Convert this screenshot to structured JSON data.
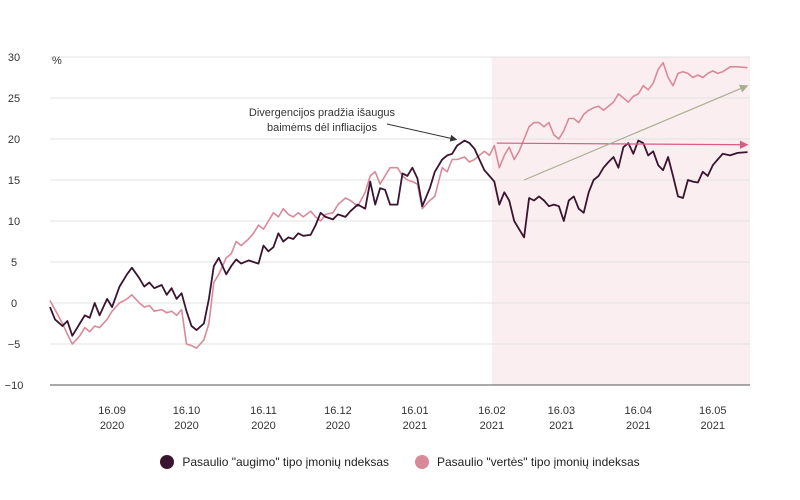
{
  "chart_data": {
    "type": "line",
    "title": "",
    "xlabel": "",
    "ylabel": "%",
    "ylim": [
      -10,
      30
    ],
    "yticks": [
      "30",
      "25",
      "20",
      "15",
      "10",
      "5",
      "0",
      "−5",
      "−10"
    ],
    "xticks": [
      {
        "day": "16.09",
        "year": "2020"
      },
      {
        "day": "16.10",
        "year": "2020"
      },
      {
        "day": "16.11",
        "year": "2020"
      },
      {
        "day": "16.12",
        "year": "2020"
      },
      {
        "day": "16.01",
        "year": "2021"
      },
      {
        "day": "16.02",
        "year": "2021"
      },
      {
        "day": "16.03",
        "year": "2021"
      },
      {
        "day": "16.04",
        "year": "2021"
      },
      {
        "day": "16.05",
        "year": "2021"
      }
    ],
    "x_range": [
      "2020-08-22",
      "2021-05-31"
    ],
    "shaded_region": {
      "from": "2021-02-16",
      "to": "2021-05-31",
      "color": "#fbeef0"
    },
    "gridlines": true,
    "legend_placement": "bottom",
    "annotation": {
      "lines": [
        "Divergencijos pradžia išaugus",
        "baimėms dėl infliacijos"
      ],
      "points_to": {
        "date": "2021-02-05",
        "y": 19.8
      }
    },
    "trend_arrows": [
      {
        "name": "growth-trend",
        "color": "#d95b86",
        "from": {
          "date": "2021-02-18",
          "y": 19.5
        },
        "to": {
          "date": "2021-05-30",
          "y": 19.3
        }
      },
      {
        "name": "value-trend",
        "color": "#a8ae92",
        "from": {
          "date": "2021-03-01",
          "y": 15.0
        },
        "to": {
          "date": "2021-05-30",
          "y": 26.5
        }
      }
    ],
    "series": [
      {
        "name": "Pasaulio \"augimo\" tipo įmonių ndeksas",
        "color": "#3a1530",
        "points": [
          [
            "2020-08-22",
            -0.5
          ],
          [
            "2020-08-24",
            -2.0
          ],
          [
            "2020-08-27",
            -2.8
          ],
          [
            "2020-08-29",
            -2.2
          ],
          [
            "2020-08-31",
            -4.0
          ],
          [
            "2020-09-03",
            -2.5
          ],
          [
            "2020-09-05",
            -1.5
          ],
          [
            "2020-09-07",
            -1.8
          ],
          [
            "2020-09-09",
            0.0
          ],
          [
            "2020-09-11",
            -1.5
          ],
          [
            "2020-09-14",
            0.5
          ],
          [
            "2020-09-16",
            -0.5
          ],
          [
            "2020-09-19",
            2.0
          ],
          [
            "2020-09-22",
            3.5
          ],
          [
            "2020-09-24",
            4.3
          ],
          [
            "2020-09-27",
            3.0
          ],
          [
            "2020-09-29",
            2.0
          ],
          [
            "2020-10-01",
            2.5
          ],
          [
            "2020-10-03",
            1.8
          ],
          [
            "2020-10-06",
            2.2
          ],
          [
            "2020-10-08",
            1.0
          ],
          [
            "2020-10-10",
            1.8
          ],
          [
            "2020-10-12",
            0.5
          ],
          [
            "2020-10-14",
            1.2
          ],
          [
            "2020-10-16",
            -1.0
          ],
          [
            "2020-10-18",
            -2.8
          ],
          [
            "2020-10-20",
            -3.3
          ],
          [
            "2020-10-23",
            -2.5
          ],
          [
            "2020-10-25",
            0.5
          ],
          [
            "2020-10-27",
            4.5
          ],
          [
            "2020-10-29",
            5.5
          ],
          [
            "2020-11-01",
            3.5
          ],
          [
            "2020-11-03",
            4.5
          ],
          [
            "2020-11-05",
            5.3
          ],
          [
            "2020-11-07",
            4.8
          ],
          [
            "2020-11-10",
            5.2
          ],
          [
            "2020-11-12",
            5.0
          ],
          [
            "2020-11-14",
            4.8
          ],
          [
            "2020-11-16",
            7.0
          ],
          [
            "2020-11-18",
            6.3
          ],
          [
            "2020-11-20",
            6.8
          ],
          [
            "2020-11-22",
            8.5
          ],
          [
            "2020-11-24",
            7.5
          ],
          [
            "2020-11-26",
            8.0
          ],
          [
            "2020-11-28",
            7.8
          ],
          [
            "2020-11-30",
            8.5
          ],
          [
            "2020-12-02",
            8.2
          ],
          [
            "2020-12-05",
            8.3
          ],
          [
            "2020-12-07",
            9.5
          ],
          [
            "2020-12-09",
            11.0
          ],
          [
            "2020-12-11",
            10.5
          ],
          [
            "2020-12-14",
            10.2
          ],
          [
            "2020-12-16",
            10.8
          ],
          [
            "2020-12-19",
            10.5
          ],
          [
            "2020-12-21",
            11.2
          ],
          [
            "2020-12-24",
            12.0
          ],
          [
            "2020-12-27",
            11.5
          ],
          [
            "2020-12-29",
            14.8
          ],
          [
            "2020-12-31",
            12.0
          ],
          [
            "2021-01-02",
            14.0
          ],
          [
            "2021-01-04",
            13.8
          ],
          [
            "2021-01-06",
            12.0
          ],
          [
            "2021-01-09",
            12.0
          ],
          [
            "2021-01-11",
            15.8
          ],
          [
            "2021-01-13",
            15.5
          ],
          [
            "2021-01-15",
            16.5
          ],
          [
            "2021-01-17",
            15.2
          ],
          [
            "2021-01-19",
            11.8
          ],
          [
            "2021-01-22",
            14.0
          ],
          [
            "2021-01-24",
            16.0
          ],
          [
            "2021-01-27",
            17.5
          ],
          [
            "2021-01-29",
            18.0
          ],
          [
            "2021-01-31",
            18.2
          ],
          [
            "2021-02-02",
            19.2
          ],
          [
            "2021-02-05",
            19.8
          ],
          [
            "2021-02-07",
            19.5
          ],
          [
            "2021-02-09",
            18.8
          ],
          [
            "2021-02-11",
            17.5
          ],
          [
            "2021-02-13",
            16.2
          ],
          [
            "2021-02-15",
            15.5
          ],
          [
            "2021-02-17",
            14.8
          ],
          [
            "2021-02-19",
            12.0
          ],
          [
            "2021-02-21",
            13.5
          ],
          [
            "2021-02-23",
            12.5
          ],
          [
            "2021-02-25",
            10.0
          ],
          [
            "2021-02-27",
            9.0
          ],
          [
            "2021-03-01",
            8.0
          ],
          [
            "2021-03-03",
            12.8
          ],
          [
            "2021-03-05",
            12.5
          ],
          [
            "2021-03-07",
            13.0
          ],
          [
            "2021-03-09",
            12.5
          ],
          [
            "2021-03-11",
            11.8
          ],
          [
            "2021-03-13",
            12.0
          ],
          [
            "2021-03-15",
            11.8
          ],
          [
            "2021-03-17",
            10.0
          ],
          [
            "2021-03-19",
            12.5
          ],
          [
            "2021-03-21",
            13.0
          ],
          [
            "2021-03-23",
            11.5
          ],
          [
            "2021-03-25",
            11.0
          ],
          [
            "2021-03-27",
            13.5
          ],
          [
            "2021-03-29",
            15.0
          ],
          [
            "2021-03-31",
            15.5
          ],
          [
            "2021-04-02",
            16.5
          ],
          [
            "2021-04-04",
            17.2
          ],
          [
            "2021-04-06",
            17.8
          ],
          [
            "2021-04-08",
            16.5
          ],
          [
            "2021-04-10",
            19.0
          ],
          [
            "2021-04-12",
            19.5
          ],
          [
            "2021-04-14",
            18.2
          ],
          [
            "2021-04-16",
            19.8
          ],
          [
            "2021-04-18",
            19.5
          ],
          [
            "2021-04-20",
            18.0
          ],
          [
            "2021-04-22",
            18.5
          ],
          [
            "2021-04-24",
            16.8
          ],
          [
            "2021-04-26",
            16.2
          ],
          [
            "2021-04-28",
            17.8
          ],
          [
            "2021-04-30",
            15.5
          ],
          [
            "2021-05-02",
            13.0
          ],
          [
            "2021-05-04",
            12.8
          ],
          [
            "2021-05-06",
            15.0
          ],
          [
            "2021-05-08",
            14.8
          ],
          [
            "2021-05-10",
            14.7
          ],
          [
            "2021-05-12",
            16.0
          ],
          [
            "2021-05-14",
            15.5
          ],
          [
            "2021-05-16",
            16.8
          ],
          [
            "2021-05-18",
            17.5
          ],
          [
            "2021-05-20",
            18.2
          ],
          [
            "2021-05-23",
            18.0
          ],
          [
            "2021-05-26",
            18.3
          ],
          [
            "2021-05-30",
            18.4
          ]
        ]
      },
      {
        "name": "Pasaulio \"vertės\" tipo įmonių indeksas",
        "color": "#d98a99",
        "points": [
          [
            "2020-08-22",
            0.3
          ],
          [
            "2020-08-24",
            -0.8
          ],
          [
            "2020-08-27",
            -2.5
          ],
          [
            "2020-08-29",
            -3.8
          ],
          [
            "2020-08-31",
            -5.0
          ],
          [
            "2020-09-03",
            -4.0
          ],
          [
            "2020-09-05",
            -3.0
          ],
          [
            "2020-09-07",
            -3.5
          ],
          [
            "2020-09-09",
            -2.8
          ],
          [
            "2020-09-11",
            -3.0
          ],
          [
            "2020-09-14",
            -2.0
          ],
          [
            "2020-09-16",
            -1.0
          ],
          [
            "2020-09-19",
            0.0
          ],
          [
            "2020-09-22",
            0.5
          ],
          [
            "2020-09-24",
            1.0
          ],
          [
            "2020-09-27",
            0.0
          ],
          [
            "2020-09-29",
            -0.5
          ],
          [
            "2020-10-01",
            -0.3
          ],
          [
            "2020-10-03",
            -1.0
          ],
          [
            "2020-10-06",
            -0.8
          ],
          [
            "2020-10-08",
            -1.2
          ],
          [
            "2020-10-10",
            -1.0
          ],
          [
            "2020-10-12",
            -1.5
          ],
          [
            "2020-10-14",
            -0.8
          ],
          [
            "2020-10-16",
            -5.0
          ],
          [
            "2020-10-18",
            -5.2
          ],
          [
            "2020-10-20",
            -5.5
          ],
          [
            "2020-10-23",
            -4.5
          ],
          [
            "2020-10-25",
            -2.5
          ],
          [
            "2020-10-27",
            2.5
          ],
          [
            "2020-10-29",
            3.5
          ],
          [
            "2020-11-01",
            5.5
          ],
          [
            "2020-11-03",
            6.0
          ],
          [
            "2020-11-05",
            7.5
          ],
          [
            "2020-11-07",
            7.0
          ],
          [
            "2020-11-10",
            7.8
          ],
          [
            "2020-11-12",
            8.5
          ],
          [
            "2020-11-14",
            9.5
          ],
          [
            "2020-11-16",
            9.0
          ],
          [
            "2020-11-18",
            10.0
          ],
          [
            "2020-11-20",
            11.0
          ],
          [
            "2020-11-22",
            10.5
          ],
          [
            "2020-11-24",
            11.5
          ],
          [
            "2020-11-26",
            10.8
          ],
          [
            "2020-11-28",
            10.5
          ],
          [
            "2020-11-30",
            11.0
          ],
          [
            "2020-12-02",
            10.5
          ],
          [
            "2020-12-05",
            11.2
          ],
          [
            "2020-12-07",
            10.5
          ],
          [
            "2020-12-09",
            10.0
          ],
          [
            "2020-12-11",
            10.8
          ],
          [
            "2020-12-14",
            11.0
          ],
          [
            "2020-12-16",
            12.0
          ],
          [
            "2020-12-19",
            12.8
          ],
          [
            "2020-12-21",
            12.5
          ],
          [
            "2020-12-24",
            11.8
          ],
          [
            "2020-12-27",
            13.5
          ],
          [
            "2020-12-29",
            15.5
          ],
          [
            "2020-12-31",
            16.0
          ],
          [
            "2021-01-02",
            14.5
          ],
          [
            "2021-01-04",
            15.5
          ],
          [
            "2021-01-06",
            16.5
          ],
          [
            "2021-01-09",
            16.5
          ],
          [
            "2021-01-11",
            15.5
          ],
          [
            "2021-01-13",
            15.0
          ],
          [
            "2021-01-15",
            14.8
          ],
          [
            "2021-01-17",
            14.5
          ],
          [
            "2021-01-19",
            11.5
          ],
          [
            "2021-01-22",
            12.5
          ],
          [
            "2021-01-24",
            13.0
          ],
          [
            "2021-01-27",
            16.5
          ],
          [
            "2021-01-29",
            16.0
          ],
          [
            "2021-01-31",
            17.5
          ],
          [
            "2021-02-02",
            17.5
          ],
          [
            "2021-02-05",
            17.8
          ],
          [
            "2021-02-07",
            17.2
          ],
          [
            "2021-02-09",
            17.5
          ],
          [
            "2021-02-11",
            18.0
          ],
          [
            "2021-02-13",
            18.5
          ],
          [
            "2021-02-15",
            18.0
          ],
          [
            "2021-02-17",
            19.2
          ],
          [
            "2021-02-19",
            16.5
          ],
          [
            "2021-02-21",
            18.0
          ],
          [
            "2021-02-23",
            19.0
          ],
          [
            "2021-02-25",
            17.5
          ],
          [
            "2021-02-27",
            18.5
          ],
          [
            "2021-03-01",
            20.0
          ],
          [
            "2021-03-03",
            21.5
          ],
          [
            "2021-03-05",
            22.0
          ],
          [
            "2021-03-07",
            22.0
          ],
          [
            "2021-03-09",
            21.5
          ],
          [
            "2021-03-11",
            22.0
          ],
          [
            "2021-03-13",
            20.5
          ],
          [
            "2021-03-15",
            20.0
          ],
          [
            "2021-03-17",
            21.0
          ],
          [
            "2021-03-19",
            22.5
          ],
          [
            "2021-03-21",
            22.5
          ],
          [
            "2021-03-23",
            22.0
          ],
          [
            "2021-03-25",
            23.0
          ],
          [
            "2021-03-27",
            23.5
          ],
          [
            "2021-03-29",
            23.8
          ],
          [
            "2021-03-31",
            24.0
          ],
          [
            "2021-04-02",
            23.5
          ],
          [
            "2021-04-04",
            24.0
          ],
          [
            "2021-04-06",
            24.5
          ],
          [
            "2021-04-08",
            25.5
          ],
          [
            "2021-04-10",
            25.0
          ],
          [
            "2021-04-12",
            24.5
          ],
          [
            "2021-04-14",
            25.2
          ],
          [
            "2021-04-16",
            25.5
          ],
          [
            "2021-04-18",
            26.5
          ],
          [
            "2021-04-20",
            26.0
          ],
          [
            "2021-04-22",
            26.8
          ],
          [
            "2021-04-24",
            28.5
          ],
          [
            "2021-04-26",
            29.3
          ],
          [
            "2021-04-28",
            27.5
          ],
          [
            "2021-04-30",
            26.5
          ],
          [
            "2021-05-02",
            28.0
          ],
          [
            "2021-05-04",
            28.2
          ],
          [
            "2021-05-06",
            28.0
          ],
          [
            "2021-05-08",
            27.5
          ],
          [
            "2021-05-10",
            27.8
          ],
          [
            "2021-05-12",
            27.5
          ],
          [
            "2021-05-14",
            28.0
          ],
          [
            "2021-05-16",
            28.3
          ],
          [
            "2021-05-18",
            28.0
          ],
          [
            "2021-05-20",
            28.2
          ],
          [
            "2021-05-23",
            28.8
          ],
          [
            "2021-05-26",
            28.8
          ],
          [
            "2021-05-30",
            28.7
          ]
        ]
      }
    ]
  }
}
